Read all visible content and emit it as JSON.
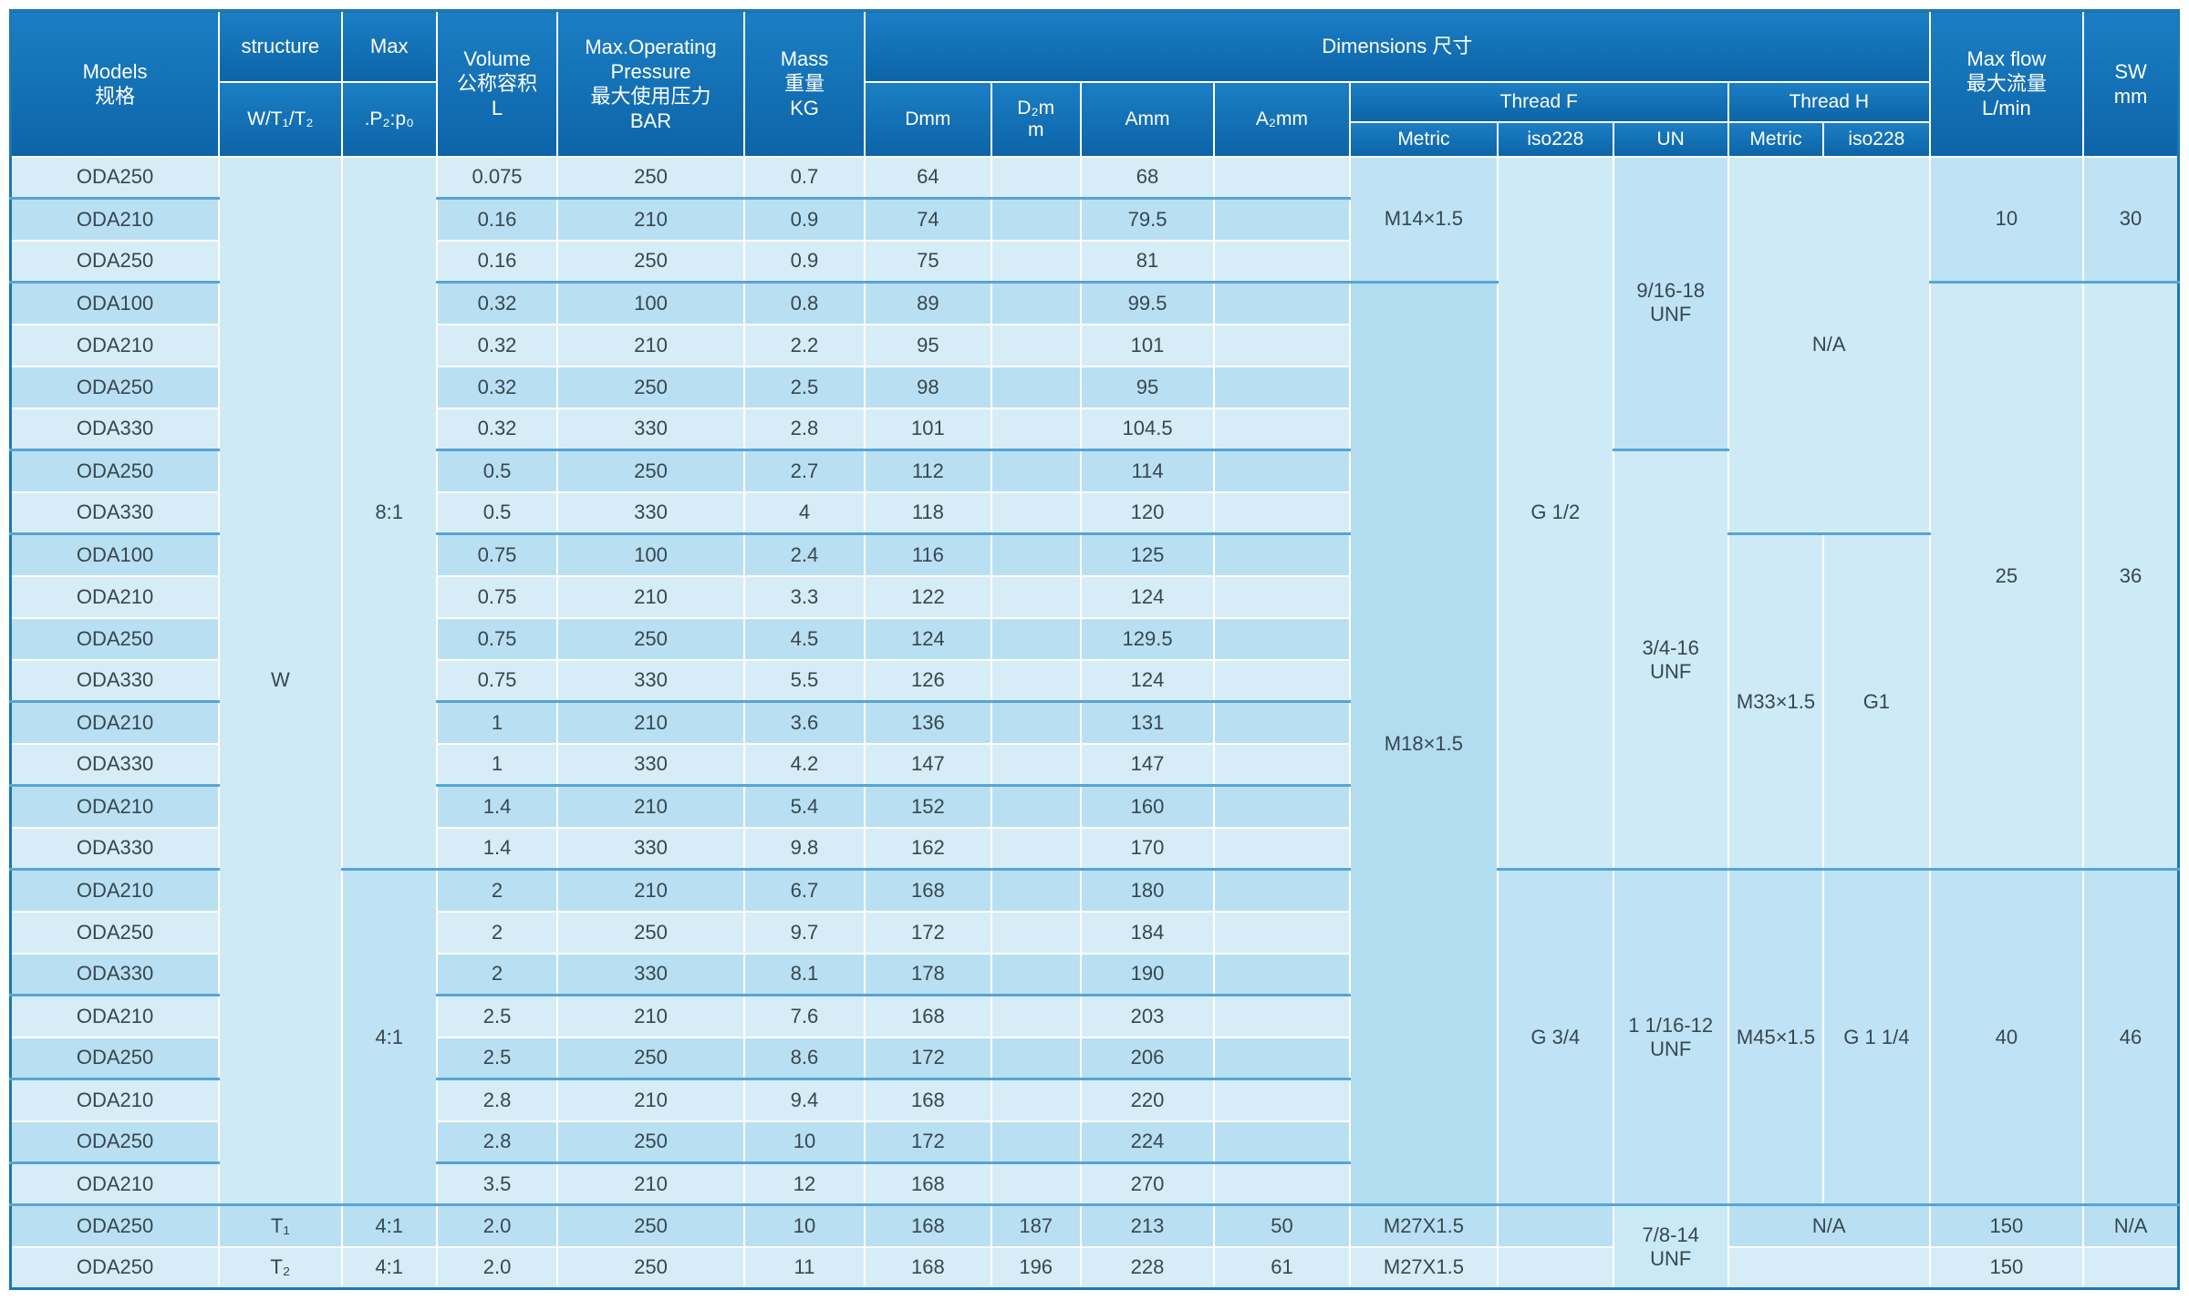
{
  "colors": {
    "header_top": "#1b7ec4",
    "header_bottom": "#0d64a8",
    "row_light": "#d6edf8",
    "row_dark": "#b9e0f2",
    "merged_default": "#c9e9f6",
    "group_separator_line": "#56a5d4",
    "outer_border": "#1d77b6",
    "body_text": "#37474f"
  },
  "header": {
    "models": "Models\n规格",
    "structure": "structure",
    "structure_sub": "W/T₁/T₂",
    "max": "Max",
    "max_sub": ".P₂:p₀",
    "volume": "Volume\n公称容积\nL",
    "pressure": "Max.Operating\nPressure\n最大使用压力\nBAR",
    "mass": "Mass\n重量\nKG",
    "dimensions": "Dimensions 尺寸",
    "dmm": "Dmm",
    "d2mm": "D₂m\nm",
    "amm": "Amm",
    "a2mm": "A₂mm",
    "thread_f": "Thread F",
    "thread_h": "Thread H",
    "f_metric": "Metric",
    "f_iso228": "iso228",
    "f_un": "UN",
    "h_metric": "Metric",
    "h_iso228": "iso228",
    "max_flow": "Max flow\n最大流量\nL/min",
    "sw": "SW\nmm"
  },
  "table": {
    "row_columns": [
      "model",
      "volume_l",
      "pressure_bar",
      "mass_kg",
      "d_mm",
      "d2_mm",
      "a_mm",
      "a2_mm"
    ],
    "rows": [
      [
        "ODA250",
        "0.075",
        "250",
        "0.7",
        "64",
        "",
        "68",
        ""
      ],
      [
        "ODA210",
        "0.16",
        "210",
        "0.9",
        "74",
        "",
        "79.5",
        ""
      ],
      [
        "ODA250",
        "0.16",
        "250",
        "0.9",
        "75",
        "",
        "81",
        ""
      ],
      [
        "ODA100",
        "0.32",
        "100",
        "0.8",
        "89",
        "",
        "99.5",
        ""
      ],
      [
        "ODA210",
        "0.32",
        "210",
        "2.2",
        "95",
        "",
        "101",
        ""
      ],
      [
        "ODA250",
        "0.32",
        "250",
        "2.5",
        "98",
        "",
        "95",
        ""
      ],
      [
        "ODA330",
        "0.32",
        "330",
        "2.8",
        "101",
        "",
        "104.5",
        ""
      ],
      [
        "ODA250",
        "0.5",
        "250",
        "2.7",
        "112",
        "",
        "114",
        ""
      ],
      [
        "ODA330",
        "0.5",
        "330",
        "4",
        "118",
        "",
        "120",
        ""
      ],
      [
        "ODA100",
        "0.75",
        "100",
        "2.4",
        "116",
        "",
        "125",
        ""
      ],
      [
        "ODA210",
        "0.75",
        "210",
        "3.3",
        "122",
        "",
        "124",
        ""
      ],
      [
        "ODA250",
        "0.75",
        "250",
        "4.5",
        "124",
        "",
        "129.5",
        ""
      ],
      [
        "ODA330",
        "0.75",
        "330",
        "5.5",
        "126",
        "",
        "124",
        ""
      ],
      [
        "ODA210",
        "1",
        "210",
        "3.6",
        "136",
        "",
        "131",
        ""
      ],
      [
        "ODA330",
        "1",
        "330",
        "4.2",
        "147",
        "",
        "147",
        ""
      ],
      [
        "ODA210",
        "1.4",
        "210",
        "5.4",
        "152",
        "",
        "160",
        ""
      ],
      [
        "ODA330",
        "1.4",
        "330",
        "9.8",
        "162",
        "",
        "170",
        ""
      ],
      [
        "ODA210",
        "2",
        "210",
        "6.7",
        "168",
        "",
        "180",
        ""
      ],
      [
        "ODA250",
        "2",
        "250",
        "9.7",
        "172",
        "",
        "184",
        ""
      ],
      [
        "ODA330",
        "2",
        "330",
        "8.1",
        "178",
        "",
        "190",
        ""
      ],
      [
        "ODA210",
        "2.5",
        "210",
        "7.6",
        "168",
        "",
        "203",
        ""
      ],
      [
        "ODA250",
        "2.5",
        "250",
        "8.6",
        "172",
        "",
        "206",
        ""
      ],
      [
        "ODA210",
        "2.8",
        "210",
        "9.4",
        "168",
        "",
        "220",
        ""
      ],
      [
        "ODA250",
        "2.8",
        "250",
        "10",
        "172",
        "",
        "224",
        ""
      ],
      [
        "ODA210",
        "3.5",
        "210",
        "12",
        "168",
        "",
        "270",
        ""
      ],
      [
        "ODA250",
        "2.0",
        "250",
        "10",
        "168",
        "187",
        "213",
        "50"
      ],
      [
        "ODA250",
        "2.0",
        "250",
        "11",
        "168",
        "196",
        "228",
        "61"
      ]
    ],
    "merged_columns": {
      "structure": [
        {
          "text": "W",
          "from": 1,
          "to": 25,
          "bg": "#cfeaf7"
        },
        {
          "text": "T₁",
          "from": 26,
          "to": 26,
          "bg": "#b9e0f2"
        },
        {
          "text": "T₂",
          "from": 27,
          "to": 27,
          "bg": "#d6edf8"
        }
      ],
      "ratio": [
        {
          "text": "8:1",
          "from": 1,
          "to": 17,
          "bg": "#cfeaf7"
        },
        {
          "text": "4:1",
          "from": 18,
          "to": 25,
          "bg": "#bfe3f4"
        },
        {
          "text": "4:1",
          "from": 26,
          "to": 26,
          "bg": "#b9e0f2"
        },
        {
          "text": "4:1",
          "from": 27,
          "to": 27,
          "bg": "#d6edf8"
        }
      ],
      "f_metric": [
        {
          "text": "M14×1.5",
          "from": 1,
          "to": 3,
          "bg": "#bfe3f4"
        },
        {
          "text": "M18×1.5",
          "from": 4,
          "to": 25,
          "bg": "#b2ddf1"
        },
        {
          "text": "M27X1.5",
          "from": 26,
          "to": 26,
          "bg": "#b9e0f2"
        },
        {
          "text": "M27X1.5",
          "from": 27,
          "to": 27,
          "bg": "#d6edf8"
        }
      ],
      "f_iso": [
        {
          "text": "G 1/2",
          "from": 1,
          "to": 17,
          "bg": "#cfeaf7"
        },
        {
          "text": "G 3/4",
          "from": 18,
          "to": 25,
          "bg": "#bfe3f4"
        },
        {
          "text": "",
          "from": 26,
          "to": 26,
          "bg": "#b9e0f2"
        },
        {
          "text": "",
          "from": 27,
          "to": 27,
          "bg": "#d6edf8"
        }
      ],
      "f_un": [
        {
          "text": "9/16-18\nUNF",
          "from": 1,
          "to": 7,
          "bg": "#bfe3f4"
        },
        {
          "text": "3/4-16\nUNF",
          "from": 8,
          "to": 17,
          "bg": "#cfeaf7"
        },
        {
          "text": "1 1/16-12\nUNF",
          "from": 18,
          "to": 25,
          "bg": "#bfe3f4"
        },
        {
          "text": "7/8-14\nUNF",
          "from": 26,
          "to": 27,
          "bg": "#c9e9f6"
        }
      ],
      "h": [
        {
          "text": "N/A",
          "colspan": 2,
          "from": 1,
          "to": 9,
          "bg": "#cfeaf7"
        },
        {
          "metric": "M33×1.5",
          "iso": "G1",
          "from": 10,
          "to": 17,
          "bg": "#cfeaf7"
        },
        {
          "metric": "M45×1.5",
          "iso": "G 1 1/4",
          "from": 18,
          "to": 25,
          "bg": "#bfe3f4"
        },
        {
          "text": "N/A",
          "colspan": 2,
          "from": 26,
          "to": 26,
          "bg": "#b9e0f2"
        },
        {
          "text": "",
          "colspan": 2,
          "from": 27,
          "to": 27,
          "bg": "#d6edf8"
        }
      ],
      "flow": [
        {
          "text": "10",
          "from": 1,
          "to": 3,
          "bg": "#bfe3f4"
        },
        {
          "text": "25",
          "from": 4,
          "to": 17,
          "bg": "#cfeaf7"
        },
        {
          "text": "40",
          "from": 18,
          "to": 25,
          "bg": "#bfe3f4"
        },
        {
          "text": "150",
          "from": 26,
          "to": 26,
          "bg": "#b9e0f2"
        },
        {
          "text": "150",
          "from": 27,
          "to": 27,
          "bg": "#d6edf8"
        }
      ],
      "sw": [
        {
          "text": "30",
          "from": 1,
          "to": 3,
          "bg": "#bfe3f4"
        },
        {
          "text": "36",
          "from": 4,
          "to": 17,
          "bg": "#cfeaf7"
        },
        {
          "text": "46",
          "from": 18,
          "to": 25,
          "bg": "#bfe3f4"
        },
        {
          "text": "N/A",
          "from": 26,
          "to": 26,
          "bg": "#b9e0f2"
        },
        {
          "text": "",
          "from": 27,
          "to": 27,
          "bg": "#d6edf8"
        }
      ]
    },
    "group_separator_after_rows": [
      1,
      3,
      7,
      9,
      13,
      15,
      17,
      20,
      22,
      24,
      25
    ]
  }
}
